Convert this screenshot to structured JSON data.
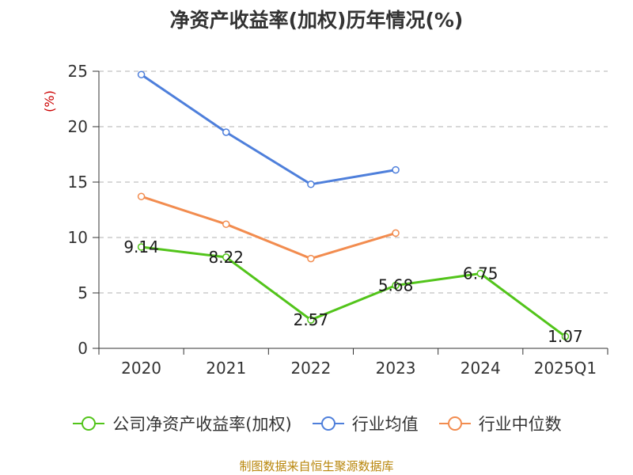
{
  "chart_data": {
    "type": "line",
    "title": "净资产收益率(加权)历年情况(%)",
    "ylabel": "(%)",
    "xlabel": "",
    "ylim": [
      0,
      25
    ],
    "yticks": [
      0,
      5,
      10,
      15,
      20,
      25
    ],
    "categories": [
      "2020",
      "2021",
      "2022",
      "2023",
      "2024",
      "2025Q1"
    ],
    "series": [
      {
        "name": "公司净资产收益率(加权)",
        "color": "#52c41a",
        "values": [
          9.14,
          8.22,
          2.57,
          5.68,
          6.75,
          1.07
        ],
        "labels": true
      },
      {
        "name": "行业均值",
        "color": "#4e7fdb",
        "values": [
          24.7,
          19.5,
          14.8,
          16.1,
          null,
          null
        ],
        "labels": false
      },
      {
        "name": "行业中位数",
        "color": "#f28c4f",
        "values": [
          13.7,
          11.2,
          8.1,
          10.4,
          null,
          null
        ],
        "labels": false
      }
    ],
    "grid": true,
    "legend_position": "bottom"
  },
  "source_note": "制图数据来自恒生聚源数据库"
}
